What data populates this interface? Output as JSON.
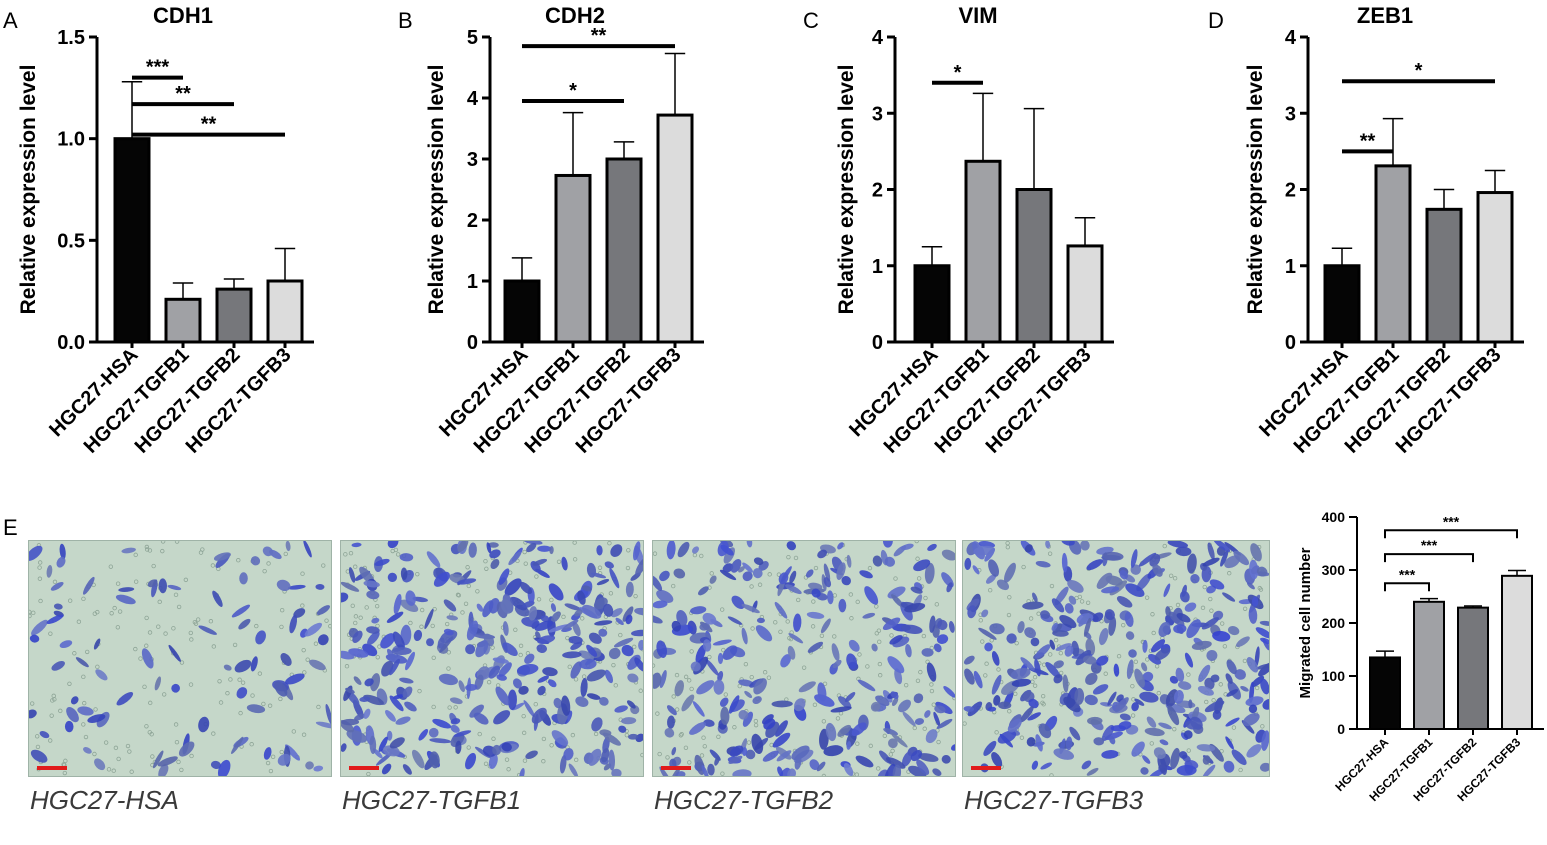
{
  "panel_letters": [
    "A",
    "B",
    "C",
    "D",
    "E"
  ],
  "colors": {
    "bar1": "#050505",
    "bar2": "#a0a1a5",
    "bar3": "#76777b",
    "bar4": "#dcdcdc",
    "stain": "#3c46b4",
    "background": "#c5d7c9"
  },
  "chart_data": [
    {
      "type": "bar",
      "title": "CDH1",
      "ylabel": "Relative expression level",
      "categories": [
        "HGC27-HSA",
        "HGC27-TGFB1",
        "HGC27-TGFB2",
        "HGC27-TGFB3"
      ],
      "values": [
        1.0,
        0.21,
        0.26,
        0.3
      ],
      "errors": [
        0.28,
        0.08,
        0.05,
        0.16
      ],
      "ylim": [
        0,
        1.5
      ],
      "yticks": [
        "0.0",
        "0.5",
        "1.0",
        "1.5"
      ],
      "ytick_values": [
        0,
        0.5,
        1.0,
        1.5
      ],
      "significance": [
        {
          "from": 0,
          "to": 1,
          "label": "***",
          "y": 1.3
        },
        {
          "from": 0,
          "to": 2,
          "label": "**",
          "y": 1.17
        },
        {
          "from": 0,
          "to": 3,
          "label": "**",
          "y": 1.02
        }
      ]
    },
    {
      "type": "bar",
      "title": "CDH2",
      "ylabel": "Relative expression level",
      "categories": [
        "HGC27-HSA",
        "HGC27-TGFB1",
        "HGC27-TGFB2",
        "HGC27-TGFB3"
      ],
      "values": [
        1.0,
        2.73,
        3.0,
        3.72
      ],
      "errors": [
        0.38,
        1.03,
        0.28,
        1.01
      ],
      "ylim": [
        0,
        5
      ],
      "yticks": [
        "0",
        "1",
        "2",
        "3",
        "4",
        "5"
      ],
      "ytick_values": [
        0,
        1,
        2,
        3,
        4,
        5
      ],
      "significance": [
        {
          "from": 0,
          "to": 2,
          "label": "*",
          "y": 3.95
        },
        {
          "from": 0,
          "to": 3,
          "label": "**",
          "y": 4.85
        }
      ]
    },
    {
      "type": "bar",
      "title": "VIM",
      "ylabel": "Relative expression level",
      "categories": [
        "HGC27-HSA",
        "HGC27-TGFB1",
        "HGC27-TGFB2",
        "HGC27-TGFB3"
      ],
      "values": [
        1.0,
        2.37,
        2.0,
        1.26
      ],
      "errors": [
        0.25,
        0.89,
        1.06,
        0.37
      ],
      "ylim": [
        0,
        4
      ],
      "yticks": [
        "0",
        "1",
        "2",
        "3",
        "4"
      ],
      "ytick_values": [
        0,
        1,
        2,
        3,
        4
      ],
      "significance": [
        {
          "from": 0,
          "to": 1,
          "label": "*",
          "y": 3.4
        }
      ]
    },
    {
      "type": "bar",
      "title": "ZEB1",
      "ylabel": "Relative expression level",
      "categories": [
        "HGC27-HSA",
        "HGC27-TGFB1",
        "HGC27-TGFB2",
        "HGC27-TGFB3"
      ],
      "values": [
        1.0,
        2.31,
        1.74,
        1.96
      ],
      "errors": [
        0.23,
        0.62,
        0.26,
        0.29
      ],
      "ylim": [
        0,
        4
      ],
      "yticks": [
        "0",
        "1",
        "2",
        "3",
        "4"
      ],
      "ytick_values": [
        0,
        1,
        2,
        3,
        4
      ],
      "significance": [
        {
          "from": 0,
          "to": 1,
          "label": "**",
          "y": 2.5
        },
        {
          "from": 0,
          "to": 3,
          "label": "*",
          "y": 3.42
        }
      ]
    },
    {
      "type": "bar",
      "title": "",
      "ylabel": "Migrated cell number",
      "categories": [
        "HGC27-HSA",
        "HGC27-TGFB1",
        "HGC27-TGFB2",
        "HGC27-TGFB3"
      ],
      "values": [
        135,
        240,
        229,
        289
      ],
      "errors": [
        12,
        6,
        3,
        10
      ],
      "ylim": [
        0,
        400
      ],
      "yticks": [
        "0",
        "100",
        "200",
        "300",
        "400"
      ],
      "ytick_values": [
        0,
        100,
        200,
        300,
        400
      ],
      "significance": [
        {
          "from": 0,
          "to": 1,
          "label": "***",
          "y": 275
        },
        {
          "from": 0,
          "to": 2,
          "label": "***",
          "y": 330
        },
        {
          "from": 0,
          "to": 3,
          "label": "***",
          "y": 375
        }
      ]
    }
  ],
  "micrographs": [
    {
      "label": "HGC27-HSA",
      "density": 90
    },
    {
      "label": "HGC27-TGFB1",
      "density": 300
    },
    {
      "label": "HGC27-TGFB2",
      "density": 260
    },
    {
      "label": "HGC27-TGFB3",
      "density": 320
    }
  ]
}
